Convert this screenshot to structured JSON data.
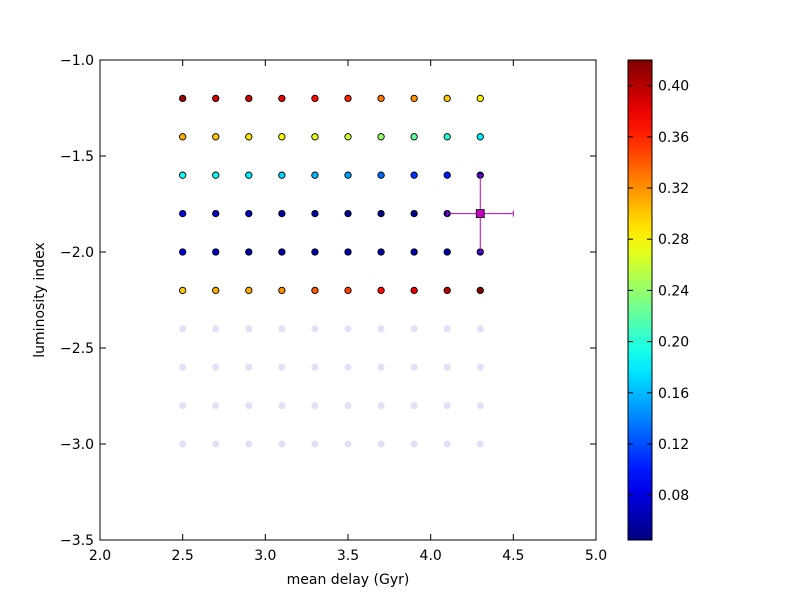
{
  "chart_data": {
    "type": "scatter",
    "title": "",
    "xlabel": "mean delay (Gyr)",
    "ylabel": "luminosity index",
    "xlim": [
      2.0,
      5.0
    ],
    "ylim": [
      -3.5,
      -1.0
    ],
    "xticks": [
      2.0,
      2.5,
      3.0,
      3.5,
      4.0,
      4.5,
      5.0
    ],
    "xtick_labels": [
      "2.0",
      "2.5",
      "3.0",
      "3.5",
      "4.0",
      "4.5",
      "5.0"
    ],
    "yticks": [
      -1.0,
      -1.5,
      -2.0,
      -2.5,
      -3.0,
      -3.5
    ],
    "ytick_labels": [
      "−1.0",
      "−1.5",
      "−2.0",
      "−2.5",
      "−3.0",
      "−3.5"
    ],
    "grid": false,
    "colormap": "jet",
    "colorbar": {
      "vmin": 0.045,
      "vmax": 0.42,
      "ticks": [
        0.08,
        0.12,
        0.16,
        0.2,
        0.24,
        0.28,
        0.32,
        0.36,
        0.4
      ],
      "tick_labels": [
        "0.08",
        "0.12",
        "0.16",
        "0.20",
        "0.24",
        "0.28",
        "0.32",
        "0.36",
        "0.40"
      ]
    },
    "x": [
      2.5,
      2.7,
      2.9,
      3.1,
      3.3,
      3.5,
      3.7,
      3.9,
      4.1,
      4.3
    ],
    "colored_rows": [
      {
        "y": -1.2,
        "values": [
          0.41,
          0.39,
          0.39,
          0.38,
          0.37,
          0.36,
          0.33,
          0.32,
          0.3,
          0.28
        ]
      },
      {
        "y": -1.4,
        "values": [
          0.31,
          0.3,
          0.29,
          0.28,
          0.27,
          0.26,
          0.24,
          0.22,
          0.2,
          0.18
        ]
      },
      {
        "y": -1.6,
        "values": [
          0.19,
          0.19,
          0.18,
          0.17,
          0.16,
          0.15,
          0.13,
          0.11,
          0.1,
          0.06
        ]
      },
      {
        "y": -1.8,
        "values": [
          0.08,
          0.07,
          0.07,
          0.06,
          0.06,
          0.05,
          0.05,
          0.05,
          0.05,
          0.05
        ]
      },
      {
        "y": -2.0,
        "values": [
          0.08,
          0.07,
          0.06,
          0.06,
          0.06,
          0.06,
          0.06,
          0.06,
          0.06,
          0.06
        ]
      },
      {
        "y": -2.2,
        "values": [
          0.3,
          0.31,
          0.31,
          0.32,
          0.34,
          0.35,
          0.37,
          0.38,
          0.4,
          0.42
        ]
      }
    ],
    "faded_rows_y": [
      -2.4,
      -2.6,
      -2.8,
      -3.0
    ],
    "faded_color": "#c8c8f0",
    "marker": {
      "x": 4.3,
      "y": -1.8,
      "xerr": [
        0.2,
        0.2
      ],
      "yerr": [
        0.2,
        0.2
      ],
      "color": "#bf00bf"
    }
  }
}
